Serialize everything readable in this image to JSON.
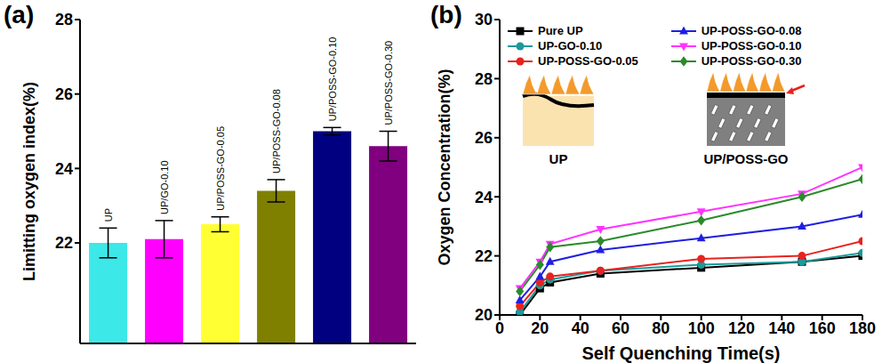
{
  "chart_data": [
    {
      "type": "bar",
      "title": "(a)",
      "y_label": "Limitting oxygen index(%)",
      "categories": [
        "UP",
        "UP/GO-0.10",
        "UP/POSS-GO-0.05",
        "UP/POSS-GO-0.08",
        "UP/POSS-GO-0.10",
        "UP/POSS-GO-0.30"
      ],
      "values": [
        22.0,
        22.1,
        22.5,
        23.4,
        25.0,
        24.6
      ],
      "errors": [
        0.4,
        0.5,
        0.2,
        0.3,
        0.1,
        0.4
      ],
      "colors": [
        "#3de8e8",
        "#ff00ff",
        "#ffff33",
        "#808000",
        "#000080",
        "#800080"
      ],
      "ylim": [
        19.3,
        28
      ],
      "yticks": [
        22,
        24,
        26,
        28
      ],
      "tick_labels": "y",
      "grid": false
    },
    {
      "type": "line",
      "title": "(b)",
      "x_label": "Self Quenching Time(s)",
      "y_label": "Oxygen Concentration(%)",
      "x": [
        10,
        20,
        25,
        50,
        100,
        150,
        180
      ],
      "series": [
        {
          "name": "Pure UP",
          "color": "#000000",
          "marker": "square",
          "values": [
            20.0,
            20.9,
            21.1,
            21.4,
            21.6,
            21.8,
            22.0
          ]
        },
        {
          "name": "UP-GO-0.10",
          "color": "#1a9a9a",
          "marker": "circle",
          "values": [
            20.1,
            21.0,
            21.2,
            21.5,
            21.7,
            21.8,
            22.1
          ]
        },
        {
          "name": "UP-POSS-GO-0.05",
          "color": "#e8221f",
          "marker": "circle",
          "values": [
            20.3,
            21.1,
            21.3,
            21.5,
            21.9,
            22.0,
            22.5
          ]
        },
        {
          "name": "UP-POSS-GO-0.08",
          "color": "#1f1fe0",
          "marker": "triangle",
          "values": [
            20.5,
            21.3,
            21.8,
            22.2,
            22.6,
            23.0,
            23.4
          ]
        },
        {
          "name": "UP-POSS-GO-0.10",
          "color": "#ff33ff",
          "marker": "triangle-down",
          "values": [
            20.9,
            21.8,
            22.4,
            22.9,
            23.5,
            24.1,
            25.0
          ]
        },
        {
          "name": "UP-POSS-GO-0.30",
          "color": "#2b8a2b",
          "marker": "diamond",
          "values": [
            20.8,
            21.7,
            22.3,
            22.5,
            23.2,
            24.0,
            24.6
          ]
        }
      ],
      "xlim": [
        0,
        180
      ],
      "xticks": [
        0,
        20,
        40,
        60,
        80,
        100,
        120,
        140,
        160,
        180
      ],
      "ylim": [
        20,
        30
      ],
      "yticks": [
        20,
        22,
        24,
        26,
        28,
        30
      ],
      "legend": "upper left",
      "grid": false,
      "annotations": [
        "UP",
        "UP/POSS-GO"
      ]
    }
  ]
}
